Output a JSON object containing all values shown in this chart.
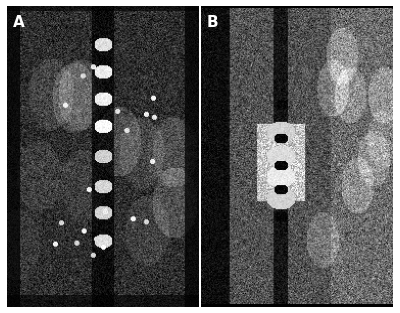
{
  "figsize": [
    4.0,
    3.13
  ],
  "dpi": 100,
  "background_color": "#ffffff",
  "panel_A_label": "A",
  "panel_B_label": "B",
  "label_color": "#ffffff",
  "label_fontsize": 11,
  "label_fontweight": "bold"
}
